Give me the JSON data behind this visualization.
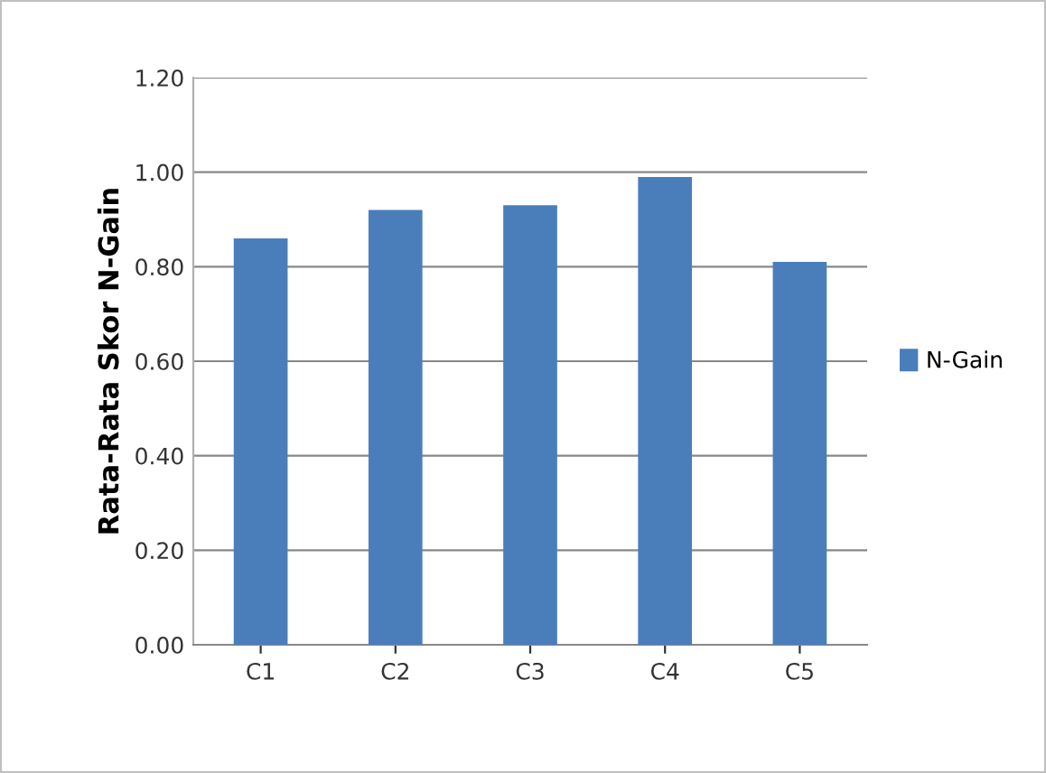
{
  "chart_data": {
    "type": "bar",
    "ylabel": "Rata-Rata Skor N-Gain",
    "categories": [
      "C1",
      "C2",
      "C3",
      "C4",
      "C5"
    ],
    "series": [
      {
        "name": "N-Gain",
        "color": "#4a7ebb",
        "values": [
          0.86,
          0.92,
          0.93,
          0.99,
          0.81
        ]
      }
    ],
    "ylim": [
      0,
      1.2
    ],
    "yticks": [
      {
        "value": 0,
        "label": "0.00"
      },
      {
        "value": 0.2,
        "label": "0.20"
      },
      {
        "value": 0.4,
        "label": "0.40"
      },
      {
        "value": 0.6,
        "label": "0.60"
      },
      {
        "value": 0.8,
        "label": "0.80"
      },
      {
        "value": 1.0,
        "label": "1.00"
      },
      {
        "value": 1.2,
        "label": "1.20"
      }
    ],
    "grid": "y",
    "legend": "right"
  }
}
